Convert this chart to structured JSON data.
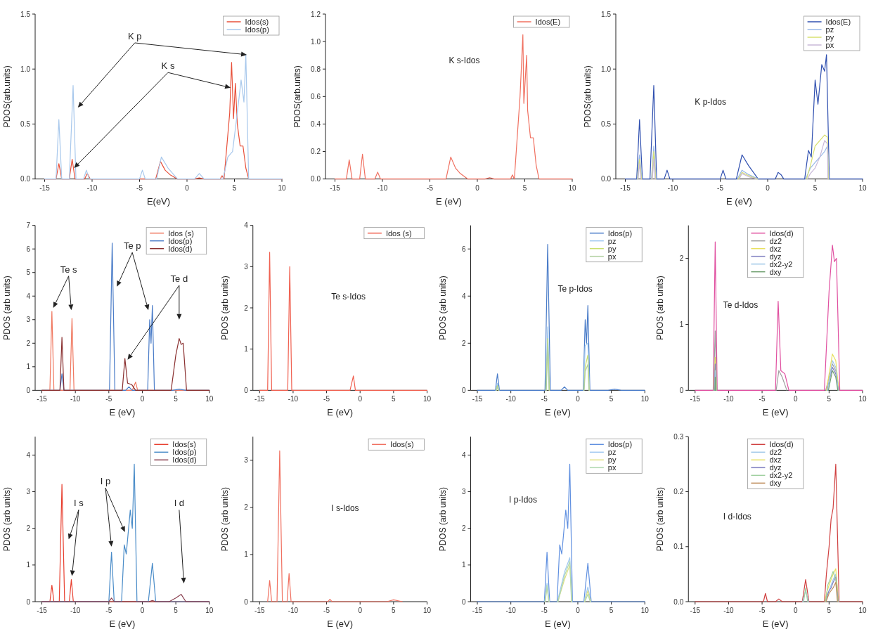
{
  "chart_data": [
    {
      "type": "line",
      "xlabel": "E(eV)",
      "ylabel": "PDOS(arb.units)",
      "xlim": [
        -16,
        10
      ],
      "xticks": [
        -15,
        -10,
        -5,
        0,
        5,
        10
      ],
      "ylim": [
        0,
        1.5
      ],
      "yticks": [
        {
          "value": 0,
          "label": "0.0"
        },
        {
          "value": 0.5,
          "label": "0.5"
        },
        {
          "value": 1,
          "label": "1.0"
        },
        {
          "value": 1.5,
          "label": "1.5"
        }
      ],
      "legend": "top right",
      "annotations": [
        "K p",
        {
          "text": "K s",
          "x": 4.6,
          "y": 0.83
        }
      ],
      "series": [
        {
          "name": "Idos(s)",
          "color": "#e8503a",
          "x": [
            -15,
            -13.8,
            -13.5,
            -13.2,
            -12.4,
            -12.1,
            -11.8,
            -11.0,
            -10.8,
            -10.5,
            -10.2,
            -3.3,
            -2.8,
            -2.3,
            -1.8,
            -1.0,
            0.8,
            1.3,
            1.8,
            3.5,
            3.7,
            3.9,
            4.2,
            4.5,
            4.7,
            4.9,
            5.1,
            5.3,
            5.6,
            5.9,
            6.2,
            6.5,
            10
          ],
          "values": [
            0,
            0,
            0.14,
            0,
            0,
            0.18,
            0,
            0,
            0,
            0.05,
            0,
            0,
            0.16,
            0.08,
            0.04,
            0,
            0,
            0.01,
            0,
            0,
            0.03,
            0,
            0.3,
            0.6,
            1.06,
            0.55,
            0.87,
            0.5,
            0.3,
            0.3,
            0.1,
            0,
            0
          ]
        },
        {
          "name": "Idos(p)",
          "color": "#a8c8ec",
          "x": [
            -15,
            -13.8,
            -13.5,
            -13.2,
            -12.4,
            -12.0,
            -11.7,
            -10.9,
            -10.6,
            -10.3,
            -5.0,
            -4.7,
            -4.4,
            -3.2,
            -2.7,
            -2.0,
            -1.0,
            0.8,
            1.3,
            1.8,
            3.8,
            4.3,
            4.8,
            5.3,
            5.7,
            6.0,
            6.2,
            6.5,
            10
          ],
          "values": [
            0,
            0,
            0.54,
            0,
            0,
            0.85,
            0,
            0,
            0.08,
            0,
            0,
            0.08,
            0,
            0,
            0.2,
            0.1,
            0,
            0,
            0.05,
            0,
            0,
            0.2,
            0.25,
            0.6,
            0.9,
            0.7,
            1.13,
            0,
            0
          ]
        }
      ]
    },
    {
      "type": "line",
      "xlabel": "E (eV)",
      "ylabel": "PDOS(arb.units)",
      "xlim": [
        -16,
        10
      ],
      "xticks": [
        -15,
        -10,
        -5,
        0,
        5,
        10
      ],
      "ylim": [
        0,
        1.2
      ],
      "yticks": [
        {
          "value": 0,
          "label": "0.0"
        },
        {
          "value": 0.2,
          "label": "0.2"
        },
        {
          "value": 0.4,
          "label": "0.4"
        },
        {
          "value": 0.6,
          "label": "0.6"
        },
        {
          "value": 0.8,
          "label": "0.8"
        },
        {
          "value": 1,
          "label": "1.0"
        },
        {
          "value": 1.2,
          "label": "1.2"
        }
      ],
      "legend": "top right",
      "annotations": [
        "K s-Idos"
      ],
      "series": [
        {
          "name": "Idos(E)",
          "color": "#f07060",
          "x": [
            -15,
            -13.8,
            -13.5,
            -13.2,
            -12.4,
            -12.1,
            -11.8,
            -11.0,
            -10.8,
            -10.5,
            -10.2,
            -3.3,
            -2.8,
            -2.3,
            -1.8,
            -1.0,
            0.8,
            1.3,
            1.8,
            3.5,
            3.7,
            3.9,
            4.2,
            4.5,
            4.8,
            4.9,
            5.2,
            5.3,
            5.6,
            5.9,
            6.2,
            6.5,
            10
          ],
          "values": [
            0,
            0,
            0.14,
            0,
            0,
            0.18,
            0,
            0,
            0,
            0.05,
            0,
            0,
            0.16,
            0.08,
            0.04,
            0,
            0,
            0.01,
            0,
            0,
            0.03,
            0,
            0.3,
            0.6,
            1.05,
            0.55,
            0.9,
            0.5,
            0.3,
            0.3,
            0.1,
            0,
            0
          ]
        }
      ]
    },
    {
      "type": "line",
      "xlabel": "E (eV)",
      "ylabel": "PDOS(arb units)",
      "xlim": [
        -16,
        10
      ],
      "xticks": [
        -15,
        -10,
        -5,
        0,
        5,
        10
      ],
      "ylim": [
        0,
        1.5
      ],
      "yticks": [
        {
          "value": 0,
          "label": "0.0"
        },
        {
          "value": 0.5,
          "label": "0.5"
        },
        {
          "value": 1,
          "label": "1.0"
        },
        {
          "value": 1.5,
          "label": "1.5"
        }
      ],
      "legend": "top right",
      "annotations": [
        "K p-Idos"
      ],
      "series": [
        {
          "name": "Idos(E)",
          "color": "#3050b0",
          "x": [
            -15,
            -13.8,
            -13.5,
            -13.2,
            -12.4,
            -12.0,
            -11.7,
            -10.9,
            -10.6,
            -10.3,
            -5.0,
            -4.7,
            -4.4,
            -3.3,
            -2.7,
            -2.0,
            -1.0,
            0.8,
            1.1,
            1.4,
            1.7,
            3.9,
            4.3,
            4.6,
            5.0,
            5.3,
            5.7,
            6.0,
            6.2,
            6.5,
            10
          ],
          "values": [
            0,
            0,
            0.54,
            0,
            0,
            0.85,
            0,
            0,
            0.08,
            0,
            0,
            0.08,
            0,
            0,
            0.22,
            0.12,
            0,
            0,
            0.06,
            0.04,
            0,
            0,
            0.26,
            0.2,
            0.9,
            0.68,
            1.04,
            0.98,
            1.13,
            0,
            0
          ]
        },
        {
          "name": "pz",
          "color": "#98b8e8",
          "x": [
            -13.75,
            -13.5,
            -13.25,
            -12.8,
            -12.25,
            -12.0,
            -11.75,
            -7,
            -3.2,
            -2.7,
            -2.0,
            -1.0,
            2.5,
            4.0,
            4.5,
            5.0,
            5.5,
            6.0,
            6.3,
            6.45
          ],
          "values": [
            0,
            0.22,
            0,
            null,
            0,
            0.3,
            0,
            null,
            0,
            0.08,
            0.04,
            0,
            null,
            0,
            0.1,
            0.15,
            0.2,
            0.25,
            0.3,
            0
          ]
        },
        {
          "name": "py",
          "color": "#d8e070",
          "x": [
            -13.7,
            -13.5,
            -13.3,
            -12.8,
            -12.2,
            -12.0,
            -11.8,
            -7,
            -3.1,
            -2.7,
            -2.0,
            -1.1,
            2.5,
            4.1,
            4.5,
            5.0,
            5.5,
            6.0,
            6.3,
            6.4
          ],
          "values": [
            0,
            0.18,
            0,
            null,
            0,
            0.25,
            0,
            null,
            0,
            0.06,
            0.03,
            0,
            null,
            0,
            0.12,
            0.3,
            0.35,
            0.4,
            0.38,
            0
          ]
        },
        {
          "name": "px",
          "color": "#c8b8d8",
          "x": [
            -13.65,
            -13.5,
            -13.35,
            -12.8,
            -12.15,
            -12.0,
            -11.85,
            -7,
            -3.0,
            -2.7,
            -2.0,
            -1.2,
            2.5,
            4.2,
            4.5,
            5.0,
            5.5,
            6.0,
            6.3,
            6.35
          ],
          "values": [
            0,
            0.14,
            0,
            null,
            0,
            0.18,
            0,
            null,
            0,
            0.05,
            0.02,
            0,
            null,
            0,
            0.05,
            0.1,
            0.2,
            0.35,
            0.32,
            0
          ]
        }
      ]
    },
    {
      "type": "line",
      "xlabel": "E (eV)",
      "ylabel": "PDOS (arb units)",
      "xlim": [
        -16,
        10
      ],
      "xticks": [
        -15,
        -10,
        -5,
        0,
        5,
        10
      ],
      "ylim": [
        0,
        7
      ],
      "yticks": [
        0,
        1,
        2,
        3,
        4,
        5,
        6,
        7
      ],
      "legend": "top right",
      "annotations": [
        "Te s",
        "Te p",
        "Te d"
      ],
      "series": [
        {
          "name": "Idos (s)",
          "color": "#f07860",
          "x": [
            -15,
            -13.8,
            -13.5,
            -13.2,
            -10.8,
            -10.5,
            -10.2,
            -1.5,
            -1.0,
            -0.7,
            10
          ],
          "values": [
            0,
            0,
            3.35,
            0,
            0,
            3.05,
            0,
            0,
            0.35,
            0,
            0
          ]
        },
        {
          "name": "Idos(p)",
          "color": "#4a7cc8",
          "x": [
            -15,
            -12.3,
            -12.0,
            -11.7,
            -4.9,
            -4.5,
            -4.1,
            -2.5,
            -2.0,
            -1.5,
            0.8,
            1.1,
            1.3,
            1.5,
            1.8,
            4.5,
            5.5,
            6.5,
            10
          ],
          "values": [
            0,
            0,
            0.7,
            0,
            0,
            6.25,
            0,
            0,
            0.15,
            0,
            0,
            3.0,
            2.0,
            3.6,
            0,
            0,
            0.05,
            0,
            0
          ]
        },
        {
          "name": "Idos(d)",
          "color": "#8a3030",
          "x": [
            -15,
            -12.3,
            -12.0,
            -11.7,
            -3.0,
            -2.6,
            -2.2,
            -1.6,
            -1.0,
            4.3,
            5.0,
            5.5,
            5.8,
            6.1,
            6.6,
            10
          ],
          "values": [
            0,
            0,
            2.25,
            0,
            0,
            1.35,
            0.3,
            0.25,
            0,
            0,
            1.5,
            2.2,
            1.95,
            2.0,
            0,
            0
          ]
        }
      ]
    },
    {
      "type": "line",
      "xlabel": "E (eV)",
      "ylabel": "PDOS (arb units)",
      "xlim": [
        -16,
        10
      ],
      "xticks": [
        -15,
        -10,
        -5,
        0,
        5,
        10
      ],
      "ylim": [
        0,
        4
      ],
      "yticks": [
        0,
        1,
        2,
        3,
        4
      ],
      "legend": "top right",
      "annotations": [
        "Te s-Idos"
      ],
      "series": [
        {
          "name": "Idos (s)",
          "color": "#f06050",
          "x": [
            -15,
            -13.8,
            -13.5,
            -13.2,
            -10.8,
            -10.5,
            -10.2,
            -1.5,
            -1.0,
            -0.7,
            10
          ],
          "values": [
            0,
            0,
            3.35,
            0,
            0,
            3.0,
            0,
            0,
            0.35,
            0,
            0
          ]
        }
      ]
    },
    {
      "type": "line",
      "xlabel": "E (eV)",
      "ylabel": "PDOS (arb units)",
      "xlim": [
        -16,
        10
      ],
      "xticks": [
        -15,
        -10,
        -5,
        0,
        5,
        10
      ],
      "ylim": [
        0,
        7
      ],
      "yticks": [
        0,
        2,
        4,
        6
      ],
      "legend": "top right",
      "annotations": [
        "Te p-Idos"
      ],
      "series": [
        {
          "name": "Idos(p)",
          "color": "#4a7cc8",
          "x": [
            -15,
            -12.3,
            -12.0,
            -11.7,
            -4.9,
            -4.5,
            -4.1,
            -2.5,
            -2.0,
            -1.5,
            0.8,
            1.1,
            1.3,
            1.5,
            1.8,
            4.5,
            5.5,
            6.5,
            10
          ],
          "values": [
            0,
            0,
            0.7,
            0,
            0,
            6.2,
            0,
            0,
            0.15,
            0,
            0,
            3.0,
            2.0,
            3.6,
            0,
            0,
            0.05,
            0,
            0
          ]
        },
        {
          "name": "pz",
          "color": "#a0c8f0",
          "x": [
            -12.25,
            -12.0,
            -11.75,
            -8,
            -4.8,
            -4.5,
            -4.2,
            -1,
            0.85,
            1.1,
            1.5,
            1.75
          ],
          "values": [
            0,
            0.3,
            0,
            null,
            0,
            2.7,
            0,
            null,
            0,
            1.9,
            2.0,
            0
          ]
        },
        {
          "name": "py",
          "color": "#c8e070",
          "x": [
            -12.2,
            -12.0,
            -11.8,
            -8,
            -4.75,
            -4.5,
            -4.25,
            -1,
            0.9,
            1.1,
            1.5,
            1.7
          ],
          "values": [
            0,
            0.2,
            0,
            null,
            0,
            2.2,
            0,
            null,
            0,
            1.0,
            1.5,
            0
          ]
        },
        {
          "name": "px",
          "color": "#b0d0a0",
          "x": [
            -12.15,
            -12.0,
            -11.85,
            -8,
            -4.7,
            -4.5,
            -4.3,
            -1,
            0.95,
            1.1,
            1.5,
            1.65
          ],
          "values": [
            0,
            0.15,
            0,
            null,
            0,
            2.0,
            0,
            null,
            0,
            0.8,
            1.1,
            0
          ]
        }
      ]
    },
    {
      "type": "line",
      "xlabel": "E (eV)",
      "ylabel": "PDOS (arb units)",
      "xlim": [
        -16,
        10
      ],
      "xticks": [
        -15,
        -10,
        -5,
        0,
        5,
        10
      ],
      "ylim": [
        0,
        2.5
      ],
      "yticks": [
        0,
        1,
        2
      ],
      "legend": "top",
      "annotations": [
        "Te d-Idos"
      ],
      "series": [
        {
          "name": "Idos(d)",
          "color": "#e050a0",
          "x": [
            -15,
            -12.3,
            -12.0,
            -11.7,
            -3.0,
            -2.6,
            -2.2,
            -1.6,
            -1.0,
            4.3,
            5.0,
            5.5,
            5.8,
            6.1,
            6.6,
            10
          ],
          "values": [
            0,
            0,
            2.25,
            0,
            0,
            1.35,
            0.3,
            0.25,
            0,
            0,
            1.5,
            2.2,
            1.95,
            2.0,
            0,
            0
          ]
        },
        {
          "name": "dz2",
          "color": "#a0a0a0",
          "x": [
            -12.25,
            -12.0,
            -11.75,
            -8,
            -2.9,
            -2.5,
            -2.0,
            -1.3,
            2,
            4.5,
            5.5,
            6.0,
            6.5
          ],
          "values": [
            0,
            0.9,
            0,
            null,
            0,
            0.3,
            0.2,
            0,
            null,
            0,
            0.4,
            0.3,
            0
          ]
        },
        {
          "name": "dxz",
          "color": "#e8e060",
          "x": [
            -12.2,
            -12.0,
            -11.8,
            0,
            4.6,
            5.5,
            6.0,
            6.45
          ],
          "values": [
            0,
            0.5,
            0,
            null,
            0,
            0.55,
            0.45,
            0
          ]
        },
        {
          "name": "dyz",
          "color": "#8080c0",
          "x": [
            -12.15,
            -12.0,
            -11.85,
            0,
            4.7,
            5.5,
            6.0,
            6.4
          ],
          "values": [
            0,
            0.4,
            0,
            null,
            0,
            0.35,
            0.25,
            0
          ]
        },
        {
          "name": "dx2-y2",
          "color": "#a0c8e8",
          "x": [
            -12.1,
            -12.0,
            -11.9,
            0,
            4.8,
            5.5,
            6.0,
            6.35
          ],
          "values": [
            0,
            0.3,
            0,
            null,
            0,
            0.45,
            0.35,
            0
          ]
        },
        {
          "name": "dxy",
          "color": "#70a070",
          "x": [
            -12.05,
            -12.0,
            -11.95,
            0,
            4.9,
            5.5,
            6.0,
            6.3
          ],
          "values": [
            0,
            0.2,
            0,
            null,
            0,
            0.3,
            0.2,
            0
          ]
        }
      ]
    },
    {
      "type": "line",
      "xlabel": "E (eV)",
      "ylabel": "PDOS (arb units)",
      "xlim": [
        -16,
        10
      ],
      "xticks": [
        -15,
        -10,
        -5,
        0,
        5,
        10
      ],
      "ylim": [
        0,
        4.5
      ],
      "yticks": [
        0,
        1,
        2,
        3,
        4
      ],
      "legend": "top right",
      "annotations": [
        "I s",
        "I p",
        "I d"
      ],
      "series": [
        {
          "name": "Idos(s)",
          "color": "#e84030",
          "x": [
            -15,
            -13.8,
            -13.5,
            -13.2,
            -12.4,
            -12.0,
            -11.6,
            -10.9,
            -10.6,
            -10.3,
            10
          ],
          "values": [
            0,
            0,
            0.45,
            0,
            0,
            3.2,
            0,
            0,
            0.6,
            0,
            0
          ]
        },
        {
          "name": "Idos(p)",
          "color": "#4a8cc8",
          "x": [
            -15,
            -5.0,
            -4.6,
            -4.2,
            -3.1,
            -2.7,
            -2.4,
            -2.1,
            -1.8,
            -1.5,
            -1.2,
            -0.8,
            0.9,
            1.5,
            2.0,
            10
          ],
          "values": [
            0,
            0,
            1.35,
            0,
            0,
            1.55,
            1.3,
            1.9,
            2.5,
            2.0,
            3.75,
            0,
            0,
            1.05,
            0,
            0
          ]
        },
        {
          "name": "Idos(d)",
          "color": "#8a4050",
          "x": [
            -15,
            -5.0,
            -4.6,
            -4.2,
            1.0,
            1.5,
            2.0,
            4.0,
            5.0,
            5.8,
            6.5,
            10
          ],
          "values": [
            0,
            0,
            0.1,
            0,
            0,
            0.03,
            0,
            0,
            0.1,
            0.2,
            0,
            0
          ]
        }
      ]
    },
    {
      "type": "line",
      "xlabel": "E (eV)",
      "ylabel": "PDOS (arb units)",
      "xlim": [
        -16,
        10
      ],
      "xticks": [
        -15,
        -10,
        -5,
        0,
        5,
        10
      ],
      "ylim": [
        0,
        3.5
      ],
      "yticks": [
        0,
        1,
        2,
        3
      ],
      "legend": "top right",
      "annotations": [
        "I s-Idos"
      ],
      "series": [
        {
          "name": "Idos(s)",
          "color": "#f07060",
          "x": [
            -13.8,
            -13.5,
            -13.2,
            -12.4,
            -12.0,
            -11.6,
            -10.9,
            -10.6,
            -10.3,
            -4.8,
            -4.5,
            -4.2,
            4.0,
            5.0,
            6.3
          ],
          "values": [
            0,
            0.45,
            0,
            0,
            3.2,
            0,
            0,
            0.6,
            0,
            0,
            0.05,
            0,
            0,
            0.04,
            0
          ]
        }
      ]
    },
    {
      "type": "line",
      "xlabel": "E (eV)",
      "ylabel": "PDOS (arb units)",
      "xlim": [
        -16,
        10
      ],
      "xticks": [
        -15,
        -10,
        -5,
        0,
        5,
        10
      ],
      "ylim": [
        0,
        4.5
      ],
      "yticks": [
        0,
        1,
        2,
        3,
        4
      ],
      "legend": "top right",
      "annotations": [
        "I p-Idos"
      ],
      "series": [
        {
          "name": "Idos(p)",
          "color": "#6090e0",
          "x": [
            -15,
            -5.0,
            -4.6,
            -4.2,
            -3.1,
            -2.7,
            -2.4,
            -2.1,
            -1.8,
            -1.5,
            -1.2,
            -0.8,
            0.9,
            1.5,
            2.0,
            10
          ],
          "values": [
            0,
            0,
            1.35,
            0,
            0,
            1.55,
            1.3,
            1.9,
            2.5,
            2.0,
            3.75,
            0,
            0,
            1.05,
            0,
            0
          ]
        },
        {
          "name": "pz",
          "color": "#a0c8f0",
          "x": [
            -4.95,
            -4.6,
            -4.25,
            -3.5,
            -3.05,
            -2.0,
            -1.2,
            -0.85,
            0,
            0.95,
            1.5,
            1.95
          ],
          "values": [
            0,
            0.5,
            0,
            null,
            0,
            0.8,
            1.2,
            0,
            null,
            0,
            0.4,
            0
          ]
        },
        {
          "name": "py",
          "color": "#e0e080",
          "x": [
            -4.9,
            -4.6,
            -4.3,
            -3.5,
            -3.0,
            -2.0,
            -1.2,
            -0.9,
            0,
            1.0,
            1.5,
            1.9
          ],
          "values": [
            0,
            0.4,
            0,
            null,
            0,
            0.6,
            1.0,
            0,
            null,
            0,
            0.3,
            0
          ]
        },
        {
          "name": "px",
          "color": "#b0d8b0",
          "x": [
            -4.85,
            -4.6,
            -4.35,
            -3.5,
            -2.95,
            -2.0,
            -1.2,
            -0.95,
            0,
            1.05,
            1.5,
            1.85
          ],
          "values": [
            0,
            0.45,
            0,
            null,
            0,
            0.7,
            1.1,
            0,
            null,
            0,
            0.2,
            0
          ]
        }
      ]
    },
    {
      "type": "line",
      "xlabel": "E (eV)",
      "ylabel": "PDOS (arb units)",
      "xlim": [
        -16,
        10
      ],
      "xticks": [
        -15,
        -10,
        -5,
        0,
        5,
        10
      ],
      "ylim": [
        0,
        0.3
      ],
      "yticks": [
        {
          "value": 0,
          "label": "0.0"
        },
        {
          "value": 0.1,
          "label": "0.1"
        },
        {
          "value": 0.2,
          "label": "0.2"
        },
        {
          "value": 0.3,
          "label": "0.3"
        }
      ],
      "legend": "top",
      "annotations": [
        "I d-Idos"
      ],
      "series": [
        {
          "name": "Idos(d)",
          "color": "#d04040",
          "x": [
            -15,
            -4.8,
            -4.5,
            -4.2,
            -3.0,
            -2.5,
            -2.0,
            1.0,
            1.5,
            2.0,
            4.3,
            4.6,
            5.0,
            5.3,
            5.6,
            6.0,
            6.5,
            10
          ],
          "values": [
            0,
            0,
            0.015,
            0,
            0,
            0.005,
            0,
            0,
            0.04,
            0,
            0,
            0.05,
            0.1,
            0.15,
            0.17,
            0.25,
            0,
            0
          ]
        },
        {
          "name": "dz2",
          "color": "#a0c8e8",
          "x": [
            1.05,
            1.5,
            1.95,
            3,
            4.35,
            4.6,
            5.0,
            5.3,
            5.6,
            6.0,
            6.45
          ],
          "values": [
            0,
            0.02,
            0,
            null,
            0,
            0.01,
            0.02,
            0.03,
            0.04,
            0.05,
            0
          ]
        },
        {
          "name": "dxz",
          "color": "#e8e060",
          "x": [
            4.4,
            4.6,
            5.0,
            5.3,
            5.6,
            6.0,
            6.4
          ],
          "values": [
            0,
            0.015,
            0.03,
            0.04,
            0.05,
            0.06,
            0
          ]
        },
        {
          "name": "dyz",
          "color": "#8080c0",
          "x": [
            4.45,
            5.0,
            5.3,
            5.6,
            6.0,
            6.35
          ],
          "values": [
            0,
            0.02,
            0.025,
            0.035,
            0.045,
            0
          ]
        },
        {
          "name": "dx2-y2",
          "color": "#a0d0a0",
          "x": [
            1.2,
            1.5,
            1.8,
            3,
            4.5,
            4.8,
            5.3,
            5.6,
            6.0,
            6.3
          ],
          "values": [
            0,
            0.025,
            0,
            null,
            0,
            0.03,
            0.045,
            0.055,
            0.04,
            0
          ]
        },
        {
          "name": "dxy",
          "color": "#c09060",
          "x": [
            4.55,
            5.0,
            5.6,
            6.0,
            6.25
          ],
          "values": [
            0,
            0.015,
            0.025,
            0.035,
            0
          ]
        }
      ]
    }
  ]
}
